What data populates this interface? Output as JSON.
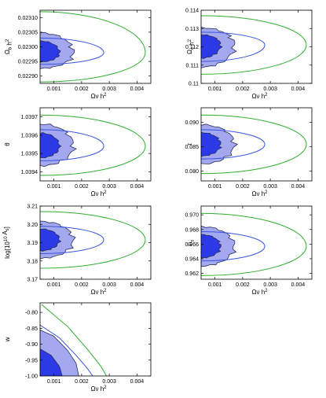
{
  "figure": {
    "colors": {
      "inner_fill": "#2b39e6",
      "outer_fill": "#a4a8ee",
      "edge": "#2a2f5a",
      "blue_line": "#3b55e0",
      "green_line": "#2fae2f",
      "frame": "#000000"
    }
  },
  "chart_data": [
    {
      "type": "contour",
      "id": "ob",
      "xlabel": "Ω_ν h²",
      "ylabel": "Ω_b h²",
      "xlim": [
        0.0005,
        0.0045
      ],
      "ylim": [
        0.022875,
        0.023125
      ],
      "x_ticks": [
        {
          "value": 0.001,
          "label": "0.001"
        },
        {
          "value": 0.002,
          "label": "0.002"
        },
        {
          "value": 0.003,
          "label": "0.003"
        },
        {
          "value": 0.004,
          "label": "0.004"
        }
      ],
      "y_ticks": [
        {
          "value": 0.0229,
          "label": "0.02290"
        },
        {
          "value": 0.02295,
          "label": "0.02295"
        },
        {
          "value": 0.023,
          "label": "0.02300"
        },
        {
          "value": 0.02305,
          "label": "0.02305"
        },
        {
          "value": 0.0231,
          "label": "0.02310"
        }
      ],
      "center": 0.02298,
      "filled_68_xmax": 0.0012,
      "filled_95_xmax": 0.0017,
      "blue_contour_xmax": 0.0028,
      "green_contour_xmax": 0.0043,
      "blue_contour_yrange": [
        0.02294,
        0.02303
      ],
      "green_contour_yrange": [
        0.02288,
        0.02312
      ]
    },
    {
      "type": "contour",
      "id": "oc",
      "xlabel": "Ω_ν h²",
      "ylabel": "Ω_c h²",
      "xlim": [
        0.0005,
        0.0045
      ],
      "ylim": [
        0.11,
        0.114
      ],
      "x_ticks": [
        {
          "value": 0.001,
          "label": "0.001"
        },
        {
          "value": 0.002,
          "label": "0.002"
        },
        {
          "value": 0.003,
          "label": "0.003"
        },
        {
          "value": 0.004,
          "label": "0.004"
        }
      ],
      "y_ticks": [
        {
          "value": 0.11,
          "label": "0.11"
        },
        {
          "value": 0.111,
          "label": "0.111"
        },
        {
          "value": 0.112,
          "label": "0.112"
        },
        {
          "value": 0.113,
          "label": "0.113"
        },
        {
          "value": 0.114,
          "label": "0.114"
        }
      ],
      "center": 0.1121,
      "filled_68_xmax": 0.0012,
      "filled_95_xmax": 0.0017,
      "blue_contour_xmax": 0.0028,
      "green_contour_xmax": 0.0043,
      "blue_contour_yrange": [
        0.1112,
        0.1128
      ],
      "green_contour_yrange": [
        0.1105,
        0.1137
      ]
    },
    {
      "type": "contour",
      "id": "theta",
      "xlabel": "Ω_ν h²",
      "ylabel": "θ",
      "xlim": [
        0.0005,
        0.0045
      ],
      "ylim": [
        1.03935,
        1.03975
      ],
      "x_ticks": [
        {
          "value": 0.001,
          "label": "0.001"
        },
        {
          "value": 0.002,
          "label": "0.002"
        },
        {
          "value": 0.003,
          "label": "0.003"
        },
        {
          "value": 0.004,
          "label": "0.004"
        }
      ],
      "y_ticks": [
        {
          "value": 1.0394,
          "label": "1.0394"
        },
        {
          "value": 1.0395,
          "label": "1.0395"
        },
        {
          "value": 1.0396,
          "label": "1.0396"
        },
        {
          "value": 1.0397,
          "label": "1.0397"
        }
      ],
      "center": 1.03954,
      "filled_68_xmax": 0.0012,
      "filled_95_xmax": 0.0017,
      "blue_contour_xmax": 0.0028,
      "green_contour_xmax": 0.0043,
      "blue_contour_yrange": [
        1.03946,
        1.03963
      ],
      "green_contour_yrange": [
        1.03938,
        1.03971
      ]
    },
    {
      "type": "contour",
      "id": "tau",
      "xlabel": "Ω_ν h²",
      "ylabel": "τ",
      "xlim": [
        0.0005,
        0.0045
      ],
      "ylim": [
        0.078,
        0.093
      ],
      "x_ticks": [
        {
          "value": 0.001,
          "label": "0.001"
        },
        {
          "value": 0.002,
          "label": "0.002"
        },
        {
          "value": 0.003,
          "label": "0.003"
        },
        {
          "value": 0.004,
          "label": "0.004"
        }
      ],
      "y_ticks": [
        {
          "value": 0.08,
          "label": "0.080"
        },
        {
          "value": 0.085,
          "label": "0.085"
        },
        {
          "value": 0.09,
          "label": "0.090"
        }
      ],
      "center": 0.0855,
      "filled_68_xmax": 0.0012,
      "filled_95_xmax": 0.0017,
      "blue_contour_xmax": 0.0028,
      "green_contour_xmax": 0.0043,
      "blue_contour_yrange": [
        0.0825,
        0.0885
      ],
      "green_contour_yrange": [
        0.0795,
        0.0915
      ]
    },
    {
      "type": "contour",
      "id": "as",
      "xlabel": "Ω_ν h²",
      "ylabel": "log[10¹⁰ A_s]",
      "xlim": [
        0.0005,
        0.0045
      ],
      "ylim": [
        3.17,
        3.21
      ],
      "x_ticks": [
        {
          "value": 0.001,
          "label": "0.001"
        },
        {
          "value": 0.002,
          "label": "0.002"
        },
        {
          "value": 0.003,
          "label": "0.003"
        },
        {
          "value": 0.004,
          "label": "0.004"
        }
      ],
      "y_ticks": [
        {
          "value": 3.17,
          "label": "3.17"
        },
        {
          "value": 3.18,
          "label": "3.18"
        },
        {
          "value": 3.19,
          "label": "3.19"
        },
        {
          "value": 3.2,
          "label": "3.20"
        },
        {
          "value": 3.21,
          "label": "3.21"
        }
      ],
      "center": 3.1915,
      "filled_68_xmax": 0.0012,
      "filled_95_xmax": 0.0017,
      "blue_contour_xmax": 0.0028,
      "green_contour_xmax": 0.0043,
      "blue_contour_yrange": [
        3.184,
        3.199
      ],
      "green_contour_yrange": [
        3.176,
        3.207
      ]
    },
    {
      "type": "contour",
      "id": "ns",
      "xlabel": "Ω_ν h²",
      "ylabel": "n_s",
      "xlim": [
        0.0005,
        0.0045
      ],
      "ylim": [
        0.9612,
        0.9712
      ],
      "x_ticks": [
        {
          "value": 0.001,
          "label": "0.001"
        },
        {
          "value": 0.002,
          "label": "0.002"
        },
        {
          "value": 0.003,
          "label": "0.003"
        },
        {
          "value": 0.004,
          "label": "0.004"
        }
      ],
      "y_ticks": [
        {
          "value": 0.962,
          "label": "0.962"
        },
        {
          "value": 0.964,
          "label": "0.964"
        },
        {
          "value": 0.966,
          "label": "0.966"
        },
        {
          "value": 0.968,
          "label": "0.968"
        },
        {
          "value": 0.97,
          "label": "0.970"
        }
      ],
      "center": 0.9657,
      "filled_68_xmax": 0.0012,
      "filled_95_xmax": 0.0017,
      "blue_contour_xmax": 0.0028,
      "green_contour_xmax": 0.0043,
      "blue_contour_yrange": [
        0.9637,
        0.9677
      ],
      "green_contour_yrange": [
        0.9617,
        0.9702
      ]
    },
    {
      "type": "contour",
      "id": "w",
      "xlabel": "Ω_ν h²",
      "ylabel": "w",
      "xlim": [
        0.0005,
        0.0045
      ],
      "ylim": [
        -1.0,
        -0.77
      ],
      "x_ticks": [
        {
          "value": 0.001,
          "label": "0.001"
        },
        {
          "value": 0.002,
          "label": "0.002"
        },
        {
          "value": 0.003,
          "label": "0.003"
        },
        {
          "value": 0.004,
          "label": "0.004"
        }
      ],
      "y_ticks": [
        {
          "value": -1.0,
          "label": "-1.00"
        },
        {
          "value": -0.95,
          "label": "-0.95"
        },
        {
          "value": -0.9,
          "label": "-0.90"
        },
        {
          "value": -0.85,
          "label": "-0.85"
        },
        {
          "value": -0.8,
          "label": "-0.80"
        }
      ],
      "upper_edge_points": {
        "outer_fill": [
          [
            0.0005,
            -0.855
          ],
          [
            0.001,
            -0.875
          ],
          [
            0.0015,
            -0.92
          ],
          [
            0.0018,
            -0.96
          ],
          [
            0.0019,
            -1.0
          ]
        ],
        "inner_fill": [
          [
            0.0005,
            -0.915
          ],
          [
            0.0009,
            -0.935
          ],
          [
            0.0012,
            -0.97
          ],
          [
            0.0013,
            -1.0
          ]
        ],
        "blue_line": [
          [
            0.0005,
            -0.84
          ],
          [
            0.0012,
            -0.88
          ],
          [
            0.0018,
            -0.935
          ],
          [
            0.0022,
            -0.975
          ],
          [
            0.0024,
            -1.0
          ]
        ],
        "green_line": [
          [
            0.00055,
            -0.775
          ],
          [
            0.0015,
            -0.845
          ],
          [
            0.0022,
            -0.915
          ],
          [
            0.0027,
            -0.97
          ],
          [
            0.0029,
            -1.0
          ]
        ]
      }
    }
  ]
}
